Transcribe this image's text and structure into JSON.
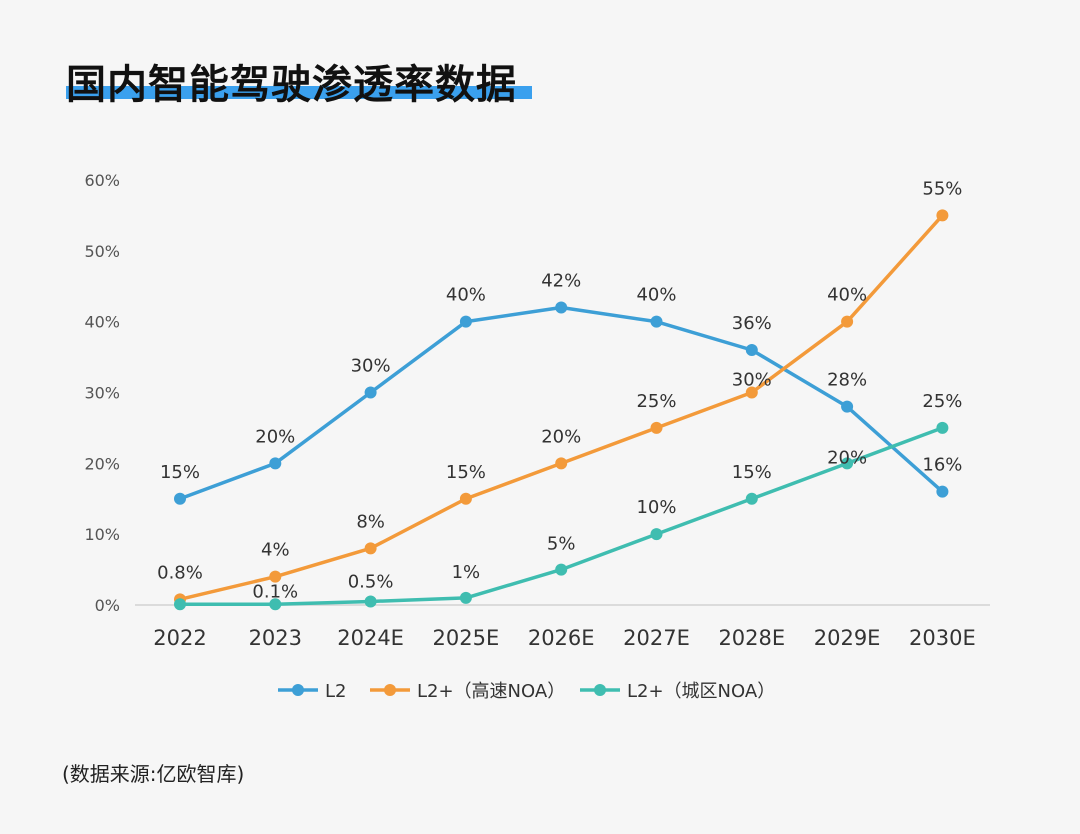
{
  "title": "国内智能驾驶渗透率数据",
  "source": "(数据来源:亿欧智库)",
  "colors": {
    "background": "#f6f6f6",
    "title_underline": "#3aa0ee",
    "l2": "#3d9fd6",
    "l2_highway": "#f39a3a",
    "l2_city": "#3fbdb0"
  },
  "chart_data": {
    "type": "line",
    "categories": [
      "2022",
      "2023",
      "2024E",
      "2025E",
      "2026E",
      "2027E",
      "2028E",
      "2029E",
      "2030E"
    ],
    "ylim": [
      0,
      60
    ],
    "yticks": [
      0,
      10,
      20,
      30,
      40,
      50,
      60
    ],
    "ytick_labels": [
      "0%",
      "10%",
      "20%",
      "30%",
      "40%",
      "50%",
      "60%"
    ],
    "grid": false,
    "legend_position": "bottom",
    "series": [
      {
        "name": "L2",
        "color": "#3d9fd6",
        "values": [
          15,
          20,
          30,
          40,
          42,
          40,
          36,
          28,
          16
        ],
        "labels": [
          "15%",
          "20%",
          "30%",
          "40%",
          "42%",
          "40%",
          "36%",
          "28%",
          "16%"
        ]
      },
      {
        "name": "L2+（高速NOA）",
        "color": "#f39a3a",
        "values": [
          0.8,
          4,
          8,
          15,
          20,
          25,
          30,
          40,
          55
        ],
        "labels": [
          "0.8%",
          "4%",
          "8%",
          "15%",
          "20%",
          "25%",
          "30%",
          "40%",
          "55%"
        ]
      },
      {
        "name": "L2+（城区NOA）",
        "color": "#3fbdb0",
        "values": [
          0.1,
          0.1,
          0.5,
          1,
          5,
          10,
          15,
          20,
          25
        ],
        "labels": [
          "",
          "0.1%",
          "0.5%",
          "1%",
          "5%",
          "10%",
          "15%",
          "20%",
          "25%"
        ]
      }
    ]
  }
}
